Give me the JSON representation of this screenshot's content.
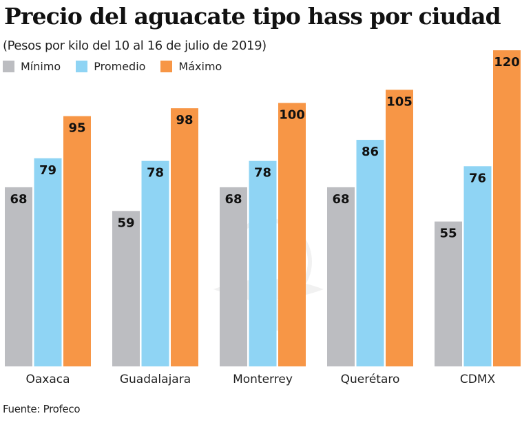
{
  "chart_data": {
    "type": "bar",
    "title": "Precio del aguacate tipo hass por ciudad",
    "subtitle": "(Pesos por kilo del 10 al 16 de julio de 2019)",
    "xlabel": "",
    "ylabel": "",
    "ylim": [
      0,
      120
    ],
    "grid": false,
    "legend_position": "top-left",
    "categories": [
      "Oaxaca",
      "Guadalajara",
      "Monterrey",
      "Querétaro",
      "CDMX"
    ],
    "series": [
      {
        "name": "Mínimo",
        "color": "#bcbdc1",
        "values": [
          68,
          59,
          68,
          68,
          55
        ]
      },
      {
        "name": "Promedio",
        "color": "#8fd4f4",
        "values": [
          79,
          78,
          78,
          86,
          76
        ]
      },
      {
        "name": "Máximo",
        "color": "#f79646",
        "values": [
          95,
          98,
          100,
          105,
          120
        ]
      }
    ],
    "source": "Fuente: Profeco"
  }
}
